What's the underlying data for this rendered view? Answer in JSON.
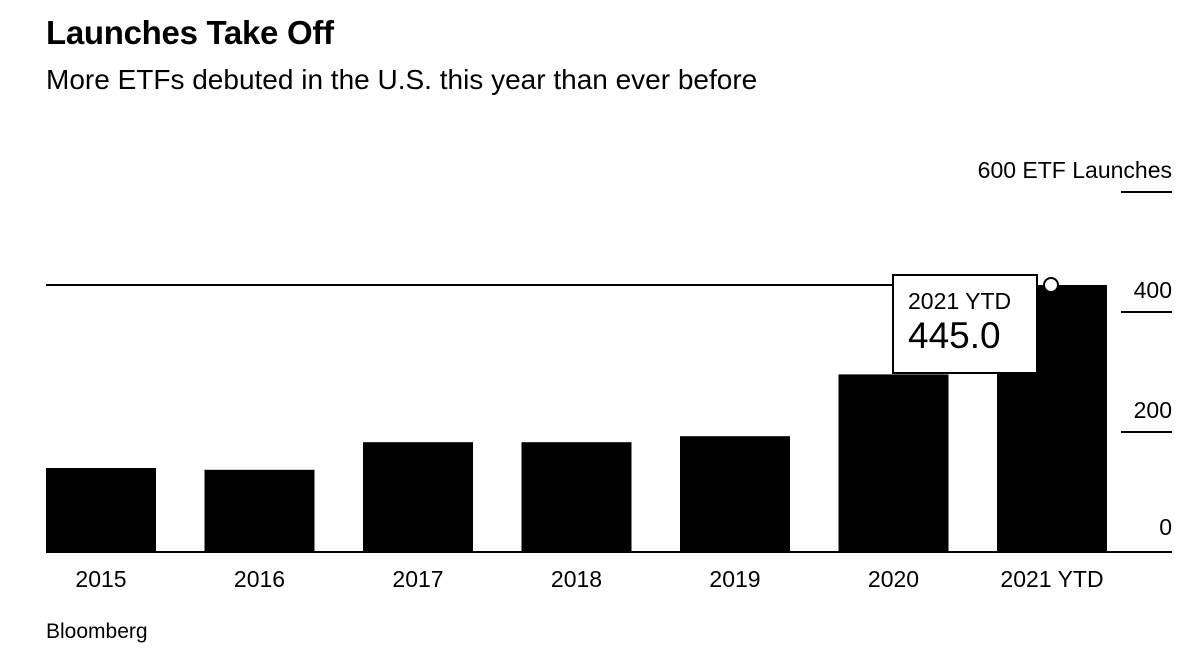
{
  "header": {
    "title": "Launches Take Off",
    "subtitle": "More ETFs debuted in the U.S. this year than ever before"
  },
  "source": "Bloomberg",
  "chart_data": {
    "type": "bar",
    "title": "Launches Take Off",
    "subtitle": "More ETFs debuted in the U.S. this year than ever before",
    "categories": [
      "2015",
      "2016",
      "2017",
      "2018",
      "2019",
      "2020",
      "2021 YTD"
    ],
    "values": [
      140,
      137,
      183,
      183,
      193,
      296,
      445
    ],
    "ylabel": "ETF Launches",
    "ylim": [
      0,
      600
    ],
    "yticks": [
      0,
      200,
      400,
      600
    ],
    "ytick_labels": [
      "0",
      "200",
      "400",
      "600 ETF Launches"
    ],
    "y_axis_position": "right",
    "grid": false,
    "bar_color": "#000000",
    "reference_line": {
      "value": 445
    },
    "tooltip": {
      "category": "2021 YTD",
      "value": "445.0"
    }
  }
}
